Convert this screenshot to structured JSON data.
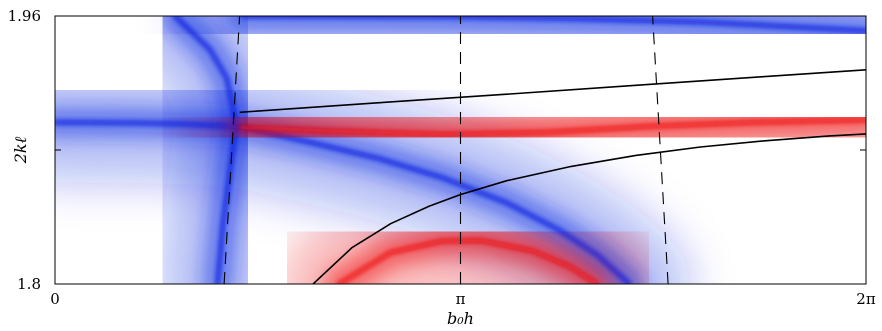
{
  "chart_data": {
    "type": "heatmap",
    "title": "",
    "xlabel": "b₀h",
    "ylabel": "2kℓ",
    "xlim": [
      0,
      6.2832
    ],
    "ylim": [
      1.8,
      1.96
    ],
    "x_tick_labels": [
      "0",
      "π",
      "2π"
    ],
    "x_tick_values": [
      0,
      3.1416,
      6.2832
    ],
    "y_tick_labels": [
      "1.8",
      "1.96"
    ],
    "y_tick_values": [
      1.8,
      1.96
    ],
    "colormap": {
      "negative": "#0a1fe0",
      "zero": "#ffffff",
      "positive": "#ee0b0b"
    },
    "dashed_lines": [
      {
        "name": "",
        "points": [
          [
            1.31,
            1.8
          ],
          [
            1.43,
            1.96
          ]
        ]
      },
      {
        "name": "",
        "points": [
          [
            3.1416,
            1.8
          ],
          [
            3.1416,
            1.96
          ]
        ]
      },
      {
        "name": "",
        "points": [
          [
            4.75,
            1.8
          ],
          [
            4.63,
            1.96
          ]
        ]
      }
    ],
    "solid_lines": [
      {
        "name": "",
        "points": [
          [
            1.43,
            1.9025
          ],
          [
            2.5,
            1.9082
          ],
          [
            3.5,
            1.9133
          ],
          [
            4.5,
            1.9186
          ],
          [
            5.5,
            1.9238
          ],
          [
            6.2832,
            1.9279
          ]
        ]
      },
      {
        "name": "",
        "points": [
          [
            2.0,
            1.8
          ],
          [
            2.3,
            1.8217
          ],
          [
            2.6,
            1.836
          ],
          [
            2.9,
            1.8465
          ],
          [
            3.14,
            1.8534
          ],
          [
            3.5,
            1.8617
          ],
          [
            4.0,
            1.8702
          ],
          [
            4.5,
            1.8768
          ],
          [
            5.0,
            1.8818
          ],
          [
            5.5,
            1.8855
          ],
          [
            6.0,
            1.8884
          ],
          [
            6.2832,
            1.8896
          ]
        ]
      }
    ],
    "ridges": [
      {
        "sign": "negative",
        "points": [
          [
            0.93,
            1.96
          ],
          [
            1.2,
            1.94
          ],
          [
            1.33,
            1.923
          ],
          [
            1.38,
            1.905
          ],
          [
            1.4,
            1.893
          ],
          [
            1.36,
            1.87
          ],
          [
            1.3,
            1.835
          ],
          [
            1.26,
            1.8
          ]
        ]
      },
      {
        "sign": "negative",
        "points": [
          [
            0.0,
            1.8965
          ],
          [
            0.6,
            1.8962
          ],
          [
            1.0,
            1.8955
          ],
          [
            1.3,
            1.8945
          ],
          [
            1.45,
            1.8935
          ],
          [
            2.0,
            1.8842
          ],
          [
            2.5,
            1.8751
          ],
          [
            3.0,
            1.8635
          ],
          [
            3.5,
            1.8485
          ],
          [
            3.9,
            1.8325
          ],
          [
            4.2,
            1.8174
          ],
          [
            4.45,
            1.8
          ]
        ]
      },
      {
        "sign": "negative",
        "points": [
          [
            1.45,
            1.96
          ],
          [
            3.0,
            1.9597
          ],
          [
            4.0,
            1.9585
          ],
          [
            5.0,
            1.9564
          ],
          [
            6.2832,
            1.9512
          ]
        ]
      },
      {
        "sign": "positive",
        "points": [
          [
            1.45,
            1.8935
          ],
          [
            2.2,
            1.8912
          ],
          [
            3.0,
            1.8893
          ],
          [
            3.8,
            1.8905
          ],
          [
            4.6,
            1.8941
          ],
          [
            5.4,
            1.8965
          ],
          [
            6.2832,
            1.898
          ]
        ]
      },
      {
        "sign": "positive",
        "points": [
          [
            2.2,
            1.8
          ],
          [
            2.6,
            1.8188
          ],
          [
            3.0,
            1.8256
          ],
          [
            3.3,
            1.8259
          ],
          [
            3.7,
            1.8198
          ],
          [
            4.0,
            1.81
          ],
          [
            4.2,
            1.8
          ]
        ]
      }
    ]
  }
}
